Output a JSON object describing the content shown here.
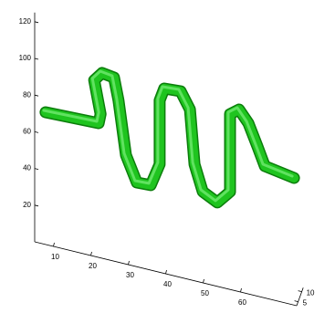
{
  "chart_data": {
    "type": "line3d",
    "series": [
      {
        "color": "#1fc41f",
        "x": [
          7.9,
          22.1,
          22.6,
          20.9,
          23.0,
          26.2,
          27.4,
          29.4,
          32.3,
          36.0,
          38.4,
          38.4,
          39.6,
          44.0,
          46.5,
          47.7,
          49.9,
          53.8,
          57.2,
          57.2,
          57.2,
          59.6,
          62.1,
          64.5,
          66.5,
          74.3
        ],
        "values": [
          72.1,
          73.2,
          78.4,
          96,
          101,
          100.1,
          88.3,
          59.4,
          45.9,
          46.3,
          58.9,
          93.7,
          100.8,
          101.5,
          92.8,
          63.5,
          49.7,
          45.7,
          53.3,
          73.2,
          95.6,
          99.3,
          93.1,
          81.8,
          71.9,
          69.3
        ]
      }
    ],
    "xlim": [
      5,
      75
    ],
    "xticks": [
      10,
      20,
      30,
      40,
      50,
      60
    ],
    "ylim": [
      3,
      12
    ],
    "yticks": [
      5,
      10
    ],
    "zlim": [
      0,
      125
    ],
    "zticks": [
      20,
      40,
      60,
      80,
      100,
      120
    ]
  }
}
